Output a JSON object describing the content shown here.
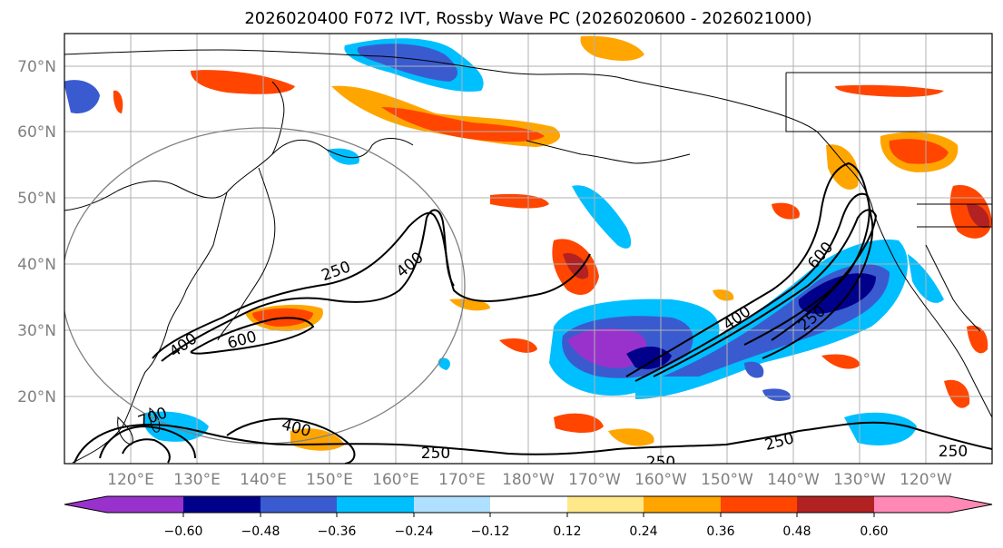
{
  "title": "2026020400 F072 IVT, Rossby Wave PC (2026020600 - 2026021000)",
  "lat_labels": [
    "70°N",
    "60°N",
    "50°N",
    "40°N",
    "30°N",
    "20°N"
  ],
  "lon_labels": [
    "120°E",
    "130°E",
    "140°E",
    "150°E",
    "160°E",
    "170°E",
    "180°W",
    "170°W",
    "160°W",
    "150°W",
    "140°W",
    "130°W",
    "120°W"
  ],
  "colorbar": {
    "colors": [
      "#9932CC",
      "#00008B",
      "#3A5BCF",
      "#00BFFF",
      "#B0E0FF",
      "#FFFFFF",
      "#FFE88A",
      "#FFA500",
      "#FF4500",
      "#B22222",
      "#FF88B4"
    ],
    "tick_labels": [
      "−0.60",
      "−0.48",
      "−0.36",
      "−0.24",
      "−0.12",
      "0.12",
      "0.24",
      "0.36",
      "0.48",
      "0.60"
    ]
  },
  "contour_labels": {
    "c250_a": "250",
    "c400_a": "400",
    "c400_b": "400",
    "c600_a": "600",
    "c400_c": "400",
    "c600_b": "600",
    "c250_b": "250",
    "c250_c": "250",
    "c250_d": "250",
    "c250_e": "250",
    "c400_d": "400",
    "c250_f": "250",
    "c700": "700"
  }
}
